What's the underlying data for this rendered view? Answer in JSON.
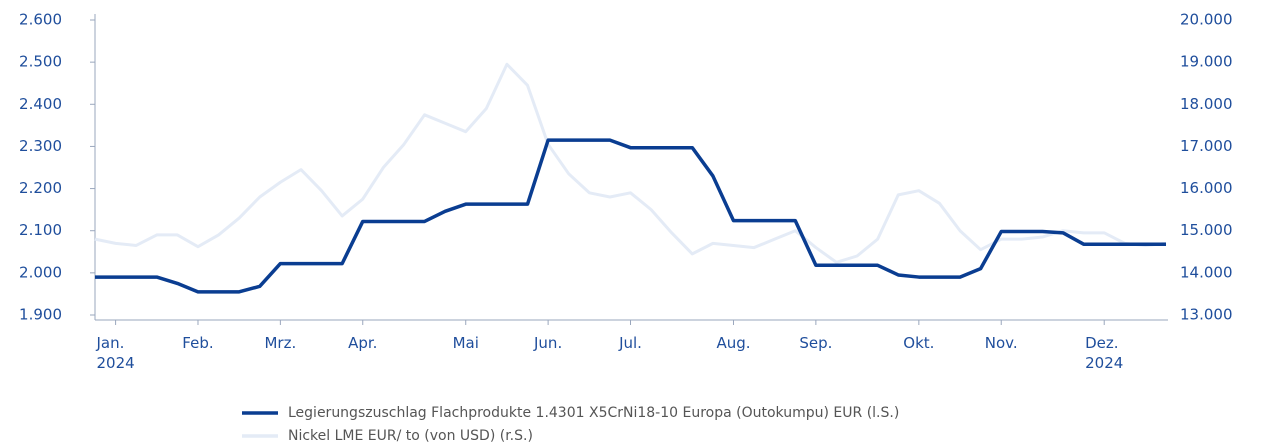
{
  "chart_data": {
    "type": "line",
    "categories": [
      null,
      "Jan.\n2024",
      null,
      null,
      null,
      "Feb.",
      null,
      null,
      null,
      "Mrz.",
      null,
      null,
      null,
      "Apr.",
      null,
      null,
      null,
      null,
      "Mai",
      null,
      null,
      null,
      "Jun.",
      null,
      null,
      null,
      "Jul.",
      null,
      null,
      null,
      null,
      "Aug.",
      null,
      null,
      null,
      "Sep.",
      null,
      null,
      null,
      null,
      "Okt.",
      null,
      null,
      null,
      "Nov.",
      null,
      null,
      null,
      null,
      "Dez.\n2024",
      null,
      null,
      null
    ],
    "series": [
      {
        "name": "Legierungszuschlag Flachprodukte 1.4301 X5CrNi18-10 Europa (Outokumpu) EUR (l.S.)",
        "color": "#0a3d91",
        "axis": "y",
        "values": [
          1990,
          1990,
          1990,
          1990,
          1975,
          1955,
          1955,
          1955,
          1968,
          2022,
          2022,
          2022,
          2022,
          2122,
          2122,
          2122,
          2122,
          2146,
          2163,
          2163,
          2163,
          2163,
          2315,
          2315,
          2315,
          2315,
          2297,
          2297,
          2297,
          2297,
          2230,
          2124,
          2124,
          2124,
          2124,
          2018,
          2018,
          2018,
          2018,
          1995,
          1990,
          1990,
          1990,
          2010,
          2098,
          2098,
          2098,
          2095,
          2068,
          2068,
          2068,
          2068,
          2068
        ]
      },
      {
        "name": "Nickel LME EUR/ to (von USD) (r.S.)",
        "color": "#e4ebf6",
        "axis": "y2",
        "values": [
          14800,
          14700,
          14650,
          14900,
          14900,
          14620,
          14900,
          15300,
          15800,
          16150,
          16450,
          15950,
          15350,
          15750,
          16500,
          17050,
          17750,
          17550,
          17350,
          17900,
          18950,
          18450,
          17050,
          16350,
          15900,
          15800,
          15900,
          15500,
          14950,
          14450,
          14700,
          14650,
          14600,
          14800,
          15000,
          14600,
          14250,
          14400,
          14800,
          15850,
          15950,
          15650,
          15000,
          14550,
          14800,
          14800,
          14850,
          15000,
          14950,
          14950,
          14700,
          14650,
          14700
        ]
      }
    ],
    "ylim": [
      1900,
      2600
    ],
    "yticks": [
      {
        "value": 1900,
        "label": "1.900"
      },
      {
        "value": 2000,
        "label": "2.000"
      },
      {
        "value": 2100,
        "label": "2.100"
      },
      {
        "value": 2200,
        "label": "2.200"
      },
      {
        "value": 2300,
        "label": "2.300"
      },
      {
        "value": 2400,
        "label": "2.400"
      },
      {
        "value": 2500,
        "label": "2.500"
      },
      {
        "value": 2600,
        "label": "2.600"
      }
    ],
    "y2lim": [
      13000,
      20000
    ],
    "y2ticks": [
      {
        "value": 13000,
        "label": "13.000"
      },
      {
        "value": 14000,
        "label": "14.000"
      },
      {
        "value": 15000,
        "label": "15.000"
      },
      {
        "value": 16000,
        "label": "16.000"
      },
      {
        "value": 17000,
        "label": "17.000"
      },
      {
        "value": 18000,
        "label": "18.000"
      },
      {
        "value": 19000,
        "label": "19.000"
      },
      {
        "value": 20000,
        "label": "20.000"
      }
    ],
    "grid": false
  }
}
